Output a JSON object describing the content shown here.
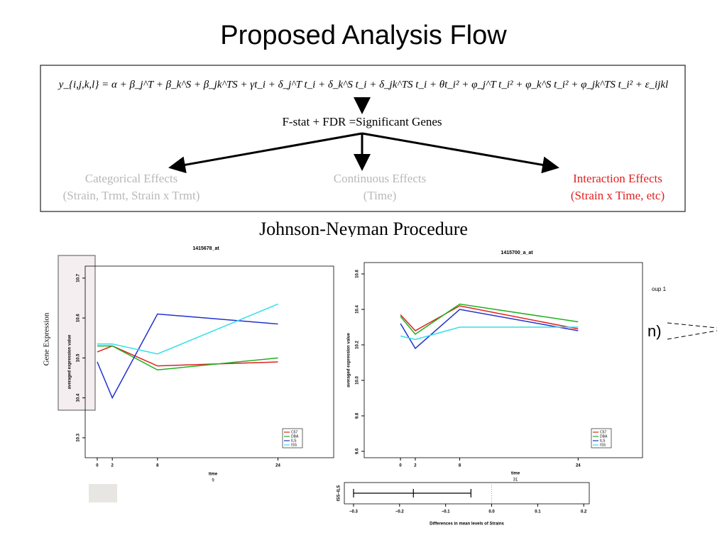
{
  "title": "Proposed Analysis Flow",
  "model": {
    "equation": "y_{i,j,k,l} = α + β_j^T + β_k^S + β_jk^TS + γt_i + δ_j^T t_i + δ_k^S t_i + δ_jk^TS t_i + θt_i² + φ_j^T t_i² + φ_k^S t_i² + φ_jk^TS t_i² + ε_ijkl",
    "step": "F-stat + FDR =Significant Genes",
    "branches": [
      {
        "label": "Categorical Effects",
        "detail": "(Strain, Trmt, Strain x Trmt)",
        "color": "#b8b8b8"
      },
      {
        "label": "Continuous Effects",
        "detail": "(Time)",
        "color": "#b8b8b8"
      },
      {
        "label": "Interaction Effects",
        "detail": "(Strain x Time, etc)",
        "color": "#e02020"
      }
    ]
  },
  "subtitle": "Johnson-Neyman Procedure",
  "side_label": "Gene Expression",
  "fragments": {
    "right_text": "n)",
    "right_note": "oup 1"
  },
  "chart_data": [
    {
      "type": "line",
      "title": "1415678_at",
      "x_label": "time",
      "x_note": "9",
      "y_label": "averaged expression value",
      "x": [
        0,
        2,
        8,
        24
      ],
      "xlim": [
        -1.6,
        31.4
      ],
      "xticks": [
        0,
        2,
        8,
        24
      ],
      "ylim": [
        10.25,
        10.73
      ],
      "yticks": [
        10.3,
        10.4,
        10.5,
        10.6,
        10.7
      ],
      "legend": "lower right",
      "series": [
        {
          "name": "C57",
          "color": "#e02020",
          "values": [
            10.515,
            10.53,
            10.48,
            10.49
          ]
        },
        {
          "name": "DBA",
          "color": "#20b020",
          "values": [
            10.53,
            10.53,
            10.47,
            10.5
          ]
        },
        {
          "name": "ILS",
          "color": "#2030d0",
          "values": [
            10.49,
            10.4,
            10.61,
            10.585
          ]
        },
        {
          "name": "ISS",
          "color": "#30e0e8",
          "values": [
            10.535,
            10.535,
            10.51,
            10.635
          ]
        }
      ]
    },
    {
      "type": "line",
      "title": "1415700_a_at",
      "x_label": "time",
      "x_note": "31",
      "y_label": "averaged expression value",
      "x": [
        0,
        2,
        8,
        24
      ],
      "xlim": [
        -4.9,
        32.7
      ],
      "xticks": [
        0,
        2,
        8,
        24
      ],
      "ylim": [
        9.564,
        10.664
      ],
      "yticks": [
        9.6,
        9.8,
        {
          "value": 10,
          "label": "10.0"
        },
        10.2,
        10.4,
        10.6
      ],
      "legend": "lower right",
      "series": [
        {
          "name": "C57",
          "color": "#e02020",
          "values": [
            10.37,
            10.28,
            10.42,
            10.29
          ]
        },
        {
          "name": "DBA",
          "color": "#20b020",
          "values": [
            10.36,
            10.26,
            10.43,
            10.33
          ]
        },
        {
          "name": "ILS",
          "color": "#2030d0",
          "values": [
            10.32,
            10.18,
            10.4,
            10.28
          ]
        },
        {
          "name": "ISS",
          "color": "#30e0e8",
          "values": [
            10.25,
            10.23,
            10.3,
            10.3
          ]
        }
      ]
    },
    {
      "type": "interval",
      "y_label": "ISS−ILS",
      "x_label": "Differences in mean levels of Strains",
      "xlim": [
        -0.32,
        0.212
      ],
      "xticks": [
        {
          "value": -0.3,
          "label": "−0.3"
        },
        {
          "value": -0.2,
          "label": "−0.2"
        },
        {
          "value": -0.1,
          "label": "−0.1"
        },
        {
          "value": 0,
          "label": "0.0"
        },
        0.1,
        0.2
      ],
      "low": -0.3,
      "estimate": -0.17,
      "high": -0.045
    }
  ]
}
